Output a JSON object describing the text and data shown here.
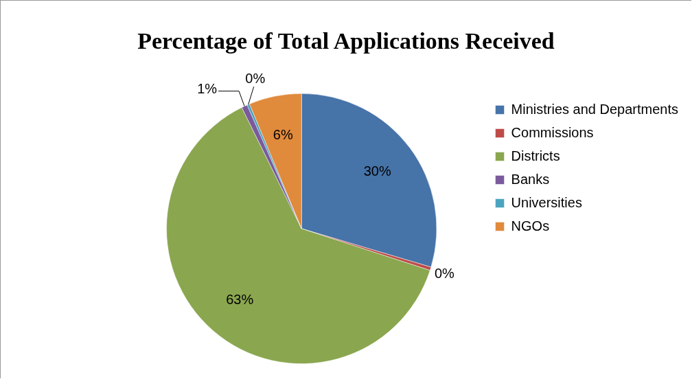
{
  "chart_data": {
    "type": "pie",
    "title": "Percentage of Total Applications Received",
    "categories": [
      "Ministries and Departments",
      "Commissions",
      "Districts",
      "Banks",
      "Universities",
      "NGOs"
    ],
    "values": [
      29.6,
      0.4,
      62.7,
      0.7,
      0.3,
      6.3
    ],
    "value_labels": [
      "30%",
      "0%",
      "63%",
      "1%",
      "0%",
      "6%"
    ],
    "colors": [
      "#4673a8",
      "#be4b48",
      "#8aa64f",
      "#7a5a9c",
      "#4aa4bf",
      "#e08a3c"
    ],
    "legend": "right"
  }
}
